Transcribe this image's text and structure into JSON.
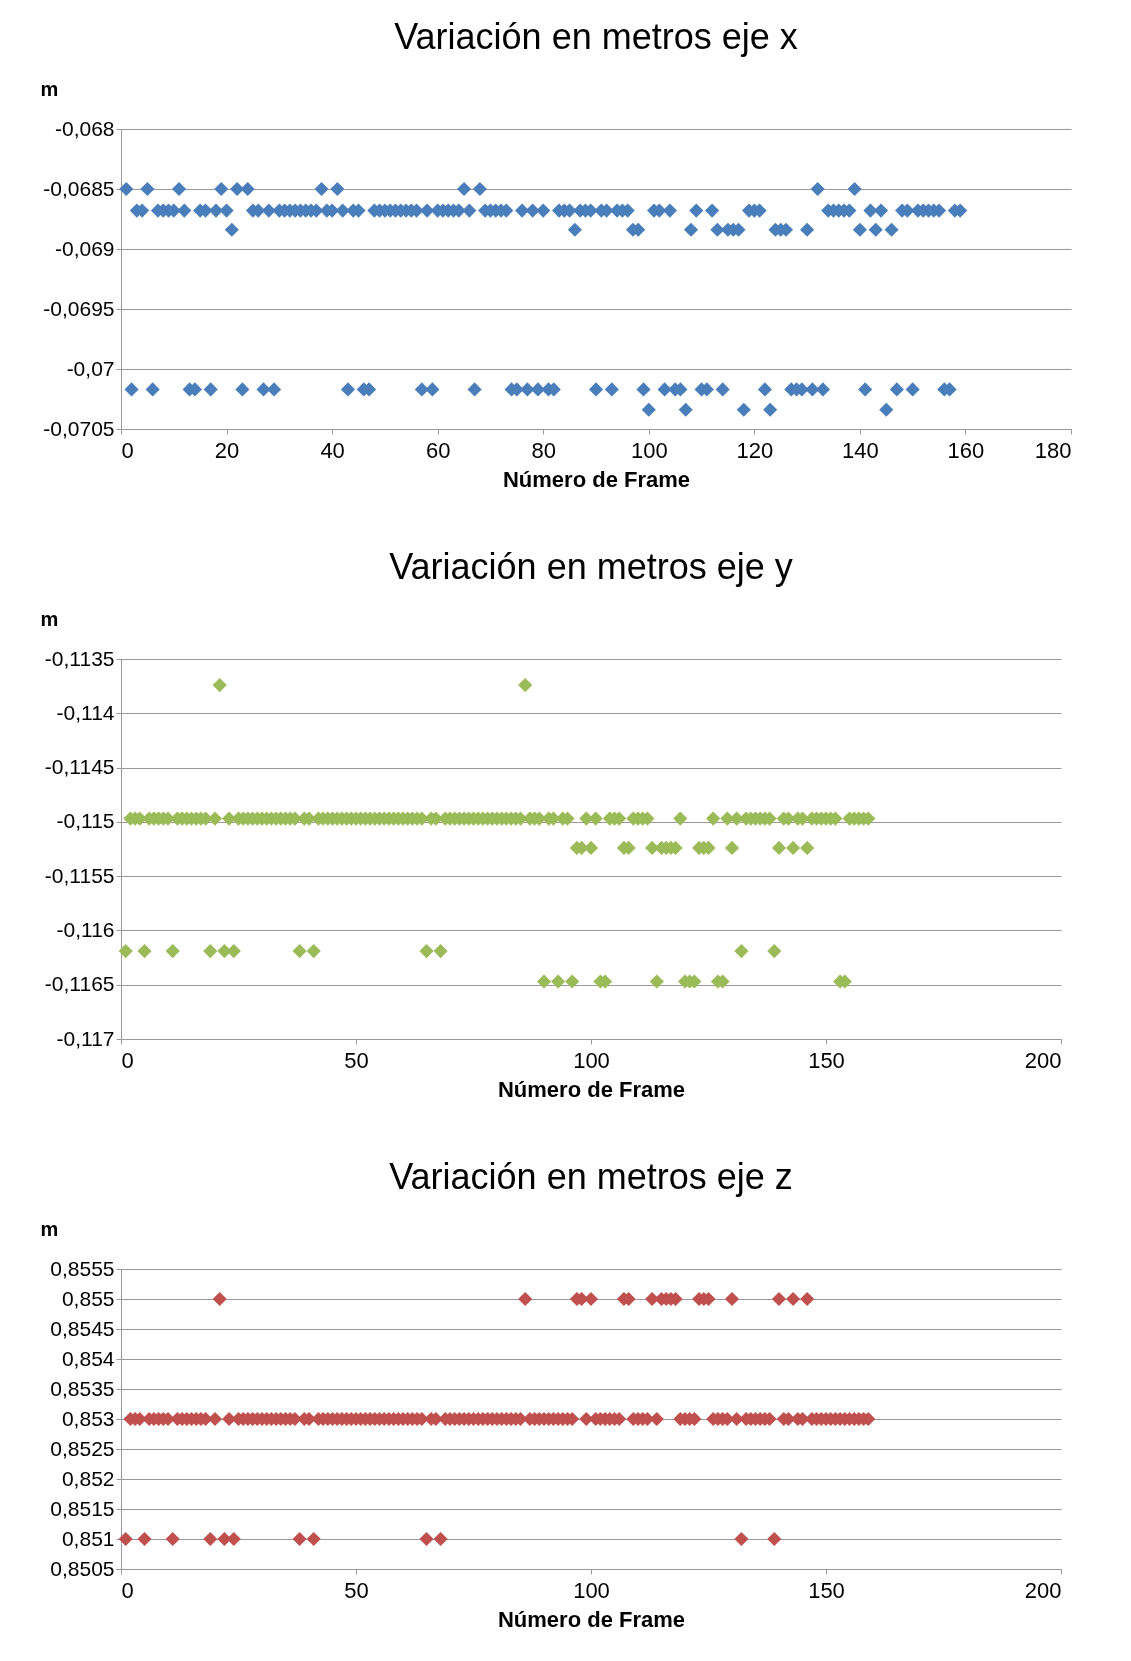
{
  "chart_data": [
    {
      "type": "scatter",
      "title": "Variación en metros eje x",
      "xlabel": "Número de Frame",
      "ylabel": "m",
      "marker": "diamond",
      "grid": "y",
      "xlim": [
        0,
        180
      ],
      "xticks": [
        0,
        20,
        40,
        60,
        80,
        100,
        120,
        140,
        160,
        180
      ],
      "ylim": [
        -0.0705,
        -0.068
      ],
      "yticks": [
        {
          "value": -0.068,
          "label": "-0,068"
        },
        {
          "value": -0.0685,
          "label": "-0,0685"
        },
        {
          "value": -0.069,
          "label": "-0,069"
        },
        {
          "value": -0.0695,
          "label": "-0,0695"
        },
        {
          "value": -0.07,
          "label": "-0,07"
        },
        {
          "value": -0.0705,
          "label": "-0,0705"
        }
      ],
      "x": [
        1,
        2,
        3,
        4,
        5,
        6,
        7,
        8,
        9,
        10,
        11,
        12,
        13,
        14,
        15,
        16,
        17,
        18,
        19,
        20,
        21,
        22,
        23,
        24,
        25,
        26,
        27,
        28,
        29,
        30,
        31,
        32,
        33,
        34,
        35,
        36,
        37,
        38,
        39,
        40,
        41,
        42,
        43,
        44,
        45,
        46,
        47,
        48,
        49,
        50,
        51,
        52,
        53,
        54,
        55,
        56,
        57,
        58,
        59,
        60,
        61,
        62,
        63,
        64,
        65,
        66,
        67,
        68,
        69,
        70,
        71,
        72,
        73,
        74,
        75,
        76,
        77,
        78,
        79,
        80,
        81,
        82,
        83,
        84,
        85,
        86,
        87,
        88,
        89,
        90,
        91,
        92,
        93,
        94,
        95,
        96,
        97,
        98,
        99,
        100,
        101,
        102,
        103,
        104,
        105,
        106,
        107,
        108,
        109,
        110,
        111,
        112,
        113,
        114,
        115,
        116,
        117,
        118,
        119,
        120,
        121,
        122,
        123,
        124,
        125,
        126,
        127,
        128,
        129,
        130,
        131,
        132,
        133,
        134,
        135,
        136,
        137,
        138,
        139,
        140,
        141,
        142,
        143,
        144,
        145,
        146,
        147,
        148,
        149,
        150,
        151,
        152,
        153,
        154,
        155,
        156,
        157,
        158,
        159
      ],
      "series": [
        {
          "color": "#4a7ebb",
          "values": [
            -0.0685,
            -0.07017,
            -0.06868,
            -0.06868,
            -0.0685,
            -0.07017,
            -0.06868,
            -0.06868,
            -0.06868,
            -0.06868,
            -0.0685,
            -0.06868,
            -0.07017,
            -0.07017,
            -0.06868,
            -0.06868,
            -0.07017,
            -0.06868,
            -0.0685,
            -0.06868,
            -0.06884,
            -0.0685,
            -0.07017,
            -0.0685,
            -0.06868,
            -0.06868,
            -0.07017,
            -0.06868,
            -0.07017,
            -0.06868,
            -0.06868,
            -0.06868,
            -0.06868,
            -0.06868,
            -0.06868,
            -0.06868,
            -0.06868,
            -0.0685,
            -0.06868,
            -0.06868,
            -0.0685,
            -0.06868,
            -0.07017,
            -0.06868,
            -0.06868,
            -0.07017,
            -0.07017,
            -0.06868,
            -0.06868,
            -0.06868,
            -0.06868,
            -0.06868,
            -0.06868,
            -0.06868,
            -0.06868,
            -0.06868,
            -0.07017,
            -0.06868,
            -0.07017,
            -0.06868,
            -0.06868,
            -0.06868,
            -0.06868,
            -0.06868,
            -0.0685,
            -0.06868,
            -0.07017,
            -0.0685,
            -0.06868,
            -0.06868,
            -0.06868,
            -0.06868,
            -0.06868,
            -0.07017,
            -0.07017,
            -0.06868,
            -0.07017,
            -0.06868,
            -0.07017,
            -0.06868,
            -0.07017,
            -0.07017,
            -0.06868,
            -0.06868,
            -0.06868,
            -0.06884,
            -0.06868,
            -0.06868,
            -0.06868,
            -0.07017,
            -0.06868,
            -0.06868,
            -0.07017,
            -0.06868,
            -0.06868,
            -0.06868,
            -0.06884,
            -0.06884,
            -0.07017,
            -0.07034,
            -0.06868,
            -0.06868,
            -0.07017,
            -0.06868,
            -0.07017,
            -0.07017,
            -0.07034,
            -0.06884,
            -0.06868,
            -0.07017,
            -0.07017,
            -0.06868,
            -0.06884,
            -0.07017,
            -0.06884,
            -0.06884,
            -0.06884,
            -0.07034,
            -0.06868,
            -0.06868,
            -0.06868,
            -0.07017,
            -0.07034,
            -0.06884,
            -0.06884,
            -0.06884,
            -0.07017,
            -0.07017,
            -0.07017,
            -0.06884,
            -0.07017,
            -0.0685,
            -0.07017,
            -0.06868,
            -0.06868,
            -0.06868,
            -0.06868,
            -0.06868,
            -0.0685,
            -0.06884,
            -0.07017,
            -0.06868,
            -0.06884,
            -0.06868,
            -0.07034,
            -0.06884,
            -0.07017,
            -0.06868,
            -0.06868,
            -0.07017,
            -0.06868,
            -0.06868,
            -0.06868,
            -0.06868,
            -0.06868,
            -0.07017,
            -0.07017,
            -0.06868,
            -0.06868
          ]
        }
      ]
    },
    {
      "type": "scatter",
      "title": "Variación en metros eje y",
      "xlabel": "Número de Frame",
      "ylabel": "m",
      "marker": "diamond",
      "grid": "y",
      "xlim": [
        0,
        200
      ],
      "xticks": [
        0,
        50,
        100,
        150,
        200
      ],
      "ylim": [
        -0.117,
        -0.1135
      ],
      "yticks": [
        {
          "value": -0.1135,
          "label": "-0,1135"
        },
        {
          "value": -0.114,
          "label": "-0,114"
        },
        {
          "value": -0.1145,
          "label": "-0,1145"
        },
        {
          "value": -0.115,
          "label": "-0,115"
        },
        {
          "value": -0.1155,
          "label": "-0,1155"
        },
        {
          "value": -0.116,
          "label": "-0,116"
        },
        {
          "value": -0.1165,
          "label": "-0,1165"
        },
        {
          "value": -0.117,
          "label": "-0,117"
        }
      ],
      "x": [
        1,
        2,
        3,
        4,
        5,
        6,
        7,
        8,
        9,
        10,
        11,
        12,
        13,
        14,
        15,
        16,
        17,
        18,
        19,
        20,
        21,
        22,
        23,
        24,
        25,
        26,
        27,
        28,
        29,
        30,
        31,
        32,
        33,
        34,
        35,
        36,
        37,
        38,
        39,
        40,
        41,
        42,
        43,
        44,
        45,
        46,
        47,
        48,
        49,
        50,
        51,
        52,
        53,
        54,
        55,
        56,
        57,
        58,
        59,
        60,
        61,
        62,
        63,
        64,
        65,
        66,
        67,
        68,
        69,
        70,
        71,
        72,
        73,
        74,
        75,
        76,
        77,
        78,
        79,
        80,
        81,
        82,
        83,
        84,
        85,
        86,
        87,
        88,
        89,
        90,
        91,
        92,
        93,
        94,
        95,
        96,
        97,
        98,
        99,
        100,
        101,
        102,
        103,
        104,
        105,
        106,
        107,
        108,
        109,
        110,
        111,
        112,
        113,
        114,
        115,
        116,
        117,
        118,
        119,
        120,
        121,
        122,
        123,
        124,
        125,
        126,
        127,
        128,
        129,
        130,
        131,
        132,
        133,
        134,
        135,
        136,
        137,
        138,
        139,
        140,
        141,
        142,
        143,
        144,
        145,
        146,
        147,
        148,
        149,
        150,
        151,
        152,
        153,
        154,
        155,
        156,
        157,
        158,
        159
      ],
      "series": [
        {
          "color": "#9bbb59",
          "values": [
            -0.11619,
            -0.11497,
            -0.11497,
            -0.11497,
            -0.11619,
            -0.11497,
            -0.11497,
            -0.11497,
            -0.11497,
            -0.11497,
            -0.11619,
            -0.11497,
            -0.11497,
            -0.11497,
            -0.11497,
            -0.11497,
            -0.11497,
            -0.11497,
            -0.11619,
            -0.11497,
            -0.11374,
            -0.11619,
            -0.11497,
            -0.11619,
            -0.11497,
            -0.11497,
            -0.11497,
            -0.11497,
            -0.11497,
            -0.11497,
            -0.11497,
            -0.11497,
            -0.11497,
            -0.11497,
            -0.11497,
            -0.11497,
            -0.11497,
            -0.11619,
            -0.11497,
            -0.11497,
            -0.11619,
            -0.11497,
            -0.11497,
            -0.11497,
            -0.11497,
            -0.11497,
            -0.11497,
            -0.11497,
            -0.11497,
            -0.11497,
            -0.11497,
            -0.11497,
            -0.11497,
            -0.11497,
            -0.11497,
            -0.11497,
            -0.11497,
            -0.11497,
            -0.11497,
            -0.11497,
            -0.11497,
            -0.11497,
            -0.11497,
            -0.11497,
            -0.11619,
            -0.11497,
            -0.11497,
            -0.11619,
            -0.11497,
            -0.11497,
            -0.11497,
            -0.11497,
            -0.11497,
            -0.11497,
            -0.11497,
            -0.11497,
            -0.11497,
            -0.11497,
            -0.11497,
            -0.11497,
            -0.11497,
            -0.11497,
            -0.11497,
            -0.11497,
            -0.11497,
            -0.11374,
            -0.11497,
            -0.11497,
            -0.11497,
            -0.11647,
            -0.11497,
            -0.11497,
            -0.11647,
            -0.11497,
            -0.11497,
            -0.11647,
            -0.11524,
            -0.11524,
            -0.11497,
            -0.11524,
            -0.11497,
            -0.11647,
            -0.11647,
            -0.11497,
            -0.11497,
            -0.11497,
            -0.11524,
            -0.11524,
            -0.11497,
            -0.11497,
            -0.11497,
            -0.11497,
            -0.11524,
            -0.11647,
            -0.11524,
            -0.11524,
            -0.11524,
            -0.11524,
            -0.11497,
            -0.11647,
            -0.11647,
            -0.11647,
            -0.11524,
            -0.11524,
            -0.11524,
            -0.11497,
            -0.11647,
            -0.11647,
            -0.11497,
            -0.11524,
            -0.11497,
            -0.11619,
            -0.11497,
            -0.11497,
            -0.11497,
            -0.11497,
            -0.11497,
            -0.11497,
            -0.11619,
            -0.11524,
            -0.11497,
            -0.11497,
            -0.11524,
            -0.11497,
            -0.11497,
            -0.11524,
            -0.11497,
            -0.11497,
            -0.11497,
            -0.11497,
            -0.11497,
            -0.11497,
            -0.11647,
            -0.11647,
            -0.11497,
            -0.11497,
            -0.11497,
            -0.11497,
            -0.11497
          ]
        }
      ]
    },
    {
      "type": "scatter",
      "title": "Variación en metros eje z",
      "xlabel": "Número de Frame",
      "ylabel": "m",
      "marker": "diamond",
      "grid": "y",
      "xlim": [
        0,
        200
      ],
      "xticks": [
        0,
        50,
        100,
        150,
        200
      ],
      "ylim": [
        0.8505,
        0.8555
      ],
      "yticks": [
        {
          "value": 0.8505,
          "label": "0,8505"
        },
        {
          "value": 0.851,
          "label": "0,851"
        },
        {
          "value": 0.8515,
          "label": "0,8515"
        },
        {
          "value": 0.852,
          "label": "0,852"
        },
        {
          "value": 0.8525,
          "label": "0,8525"
        },
        {
          "value": 0.853,
          "label": "0,853"
        },
        {
          "value": 0.8535,
          "label": "0,8535"
        },
        {
          "value": 0.854,
          "label": "0,854"
        },
        {
          "value": 0.8545,
          "label": "0,8545"
        },
        {
          "value": 0.855,
          "label": "0,855"
        },
        {
          "value": 0.8555,
          "label": "0,8555"
        }
      ],
      "x": [
        1,
        2,
        3,
        4,
        5,
        6,
        7,
        8,
        9,
        10,
        11,
        12,
        13,
        14,
        15,
        16,
        17,
        18,
        19,
        20,
        21,
        22,
        23,
        24,
        25,
        26,
        27,
        28,
        29,
        30,
        31,
        32,
        33,
        34,
        35,
        36,
        37,
        38,
        39,
        40,
        41,
        42,
        43,
        44,
        45,
        46,
        47,
        48,
        49,
        50,
        51,
        52,
        53,
        54,
        55,
        56,
        57,
        58,
        59,
        60,
        61,
        62,
        63,
        64,
        65,
        66,
        67,
        68,
        69,
        70,
        71,
        72,
        73,
        74,
        75,
        76,
        77,
        78,
        79,
        80,
        81,
        82,
        83,
        84,
        85,
        86,
        87,
        88,
        89,
        90,
        91,
        92,
        93,
        94,
        95,
        96,
        97,
        98,
        99,
        100,
        101,
        102,
        103,
        104,
        105,
        106,
        107,
        108,
        109,
        110,
        111,
        112,
        113,
        114,
        115,
        116,
        117,
        118,
        119,
        120,
        121,
        122,
        123,
        124,
        125,
        126,
        127,
        128,
        129,
        130,
        131,
        132,
        133,
        134,
        135,
        136,
        137,
        138,
        139,
        140,
        141,
        142,
        143,
        144,
        145,
        146,
        147,
        148,
        149,
        150,
        151,
        152,
        153,
        154,
        155,
        156,
        157,
        158,
        159
      ],
      "series": [
        {
          "color": "#c0504d",
          "values": [
            0.851,
            0.853,
            0.853,
            0.853,
            0.851,
            0.853,
            0.853,
            0.853,
            0.853,
            0.853,
            0.851,
            0.853,
            0.853,
            0.853,
            0.853,
            0.853,
            0.853,
            0.853,
            0.851,
            0.853,
            0.855,
            0.851,
            0.853,
            0.851,
            0.853,
            0.853,
            0.853,
            0.853,
            0.853,
            0.853,
            0.853,
            0.853,
            0.853,
            0.853,
            0.853,
            0.853,
            0.853,
            0.851,
            0.853,
            0.853,
            0.851,
            0.853,
            0.853,
            0.853,
            0.853,
            0.853,
            0.853,
            0.853,
            0.853,
            0.853,
            0.853,
            0.853,
            0.853,
            0.853,
            0.853,
            0.853,
            0.853,
            0.853,
            0.853,
            0.853,
            0.853,
            0.853,
            0.853,
            0.853,
            0.851,
            0.853,
            0.853,
            0.851,
            0.853,
            0.853,
            0.853,
            0.853,
            0.853,
            0.853,
            0.853,
            0.853,
            0.853,
            0.853,
            0.853,
            0.853,
            0.853,
            0.853,
            0.853,
            0.853,
            0.853,
            0.855,
            0.853,
            0.853,
            0.853,
            0.853,
            0.853,
            0.853,
            0.853,
            0.853,
            0.853,
            0.853,
            0.855,
            0.855,
            0.853,
            0.855,
            0.853,
            0.853,
            0.853,
            0.853,
            0.853,
            0.853,
            0.855,
            0.855,
            0.853,
            0.853,
            0.853,
            0.853,
            0.855,
            0.853,
            0.855,
            0.855,
            0.855,
            0.855,
            0.853,
            0.853,
            0.853,
            0.853,
            0.855,
            0.855,
            0.855,
            0.853,
            0.853,
            0.853,
            0.853,
            0.855,
            0.853,
            0.851,
            0.853,
            0.853,
            0.853,
            0.853,
            0.853,
            0.853,
            0.851,
            0.855,
            0.853,
            0.853,
            0.855,
            0.853,
            0.853,
            0.855,
            0.853,
            0.853,
            0.853,
            0.853,
            0.853,
            0.853,
            0.853,
            0.853,
            0.853,
            0.853,
            0.853,
            0.853,
            0.853
          ]
        }
      ]
    }
  ]
}
